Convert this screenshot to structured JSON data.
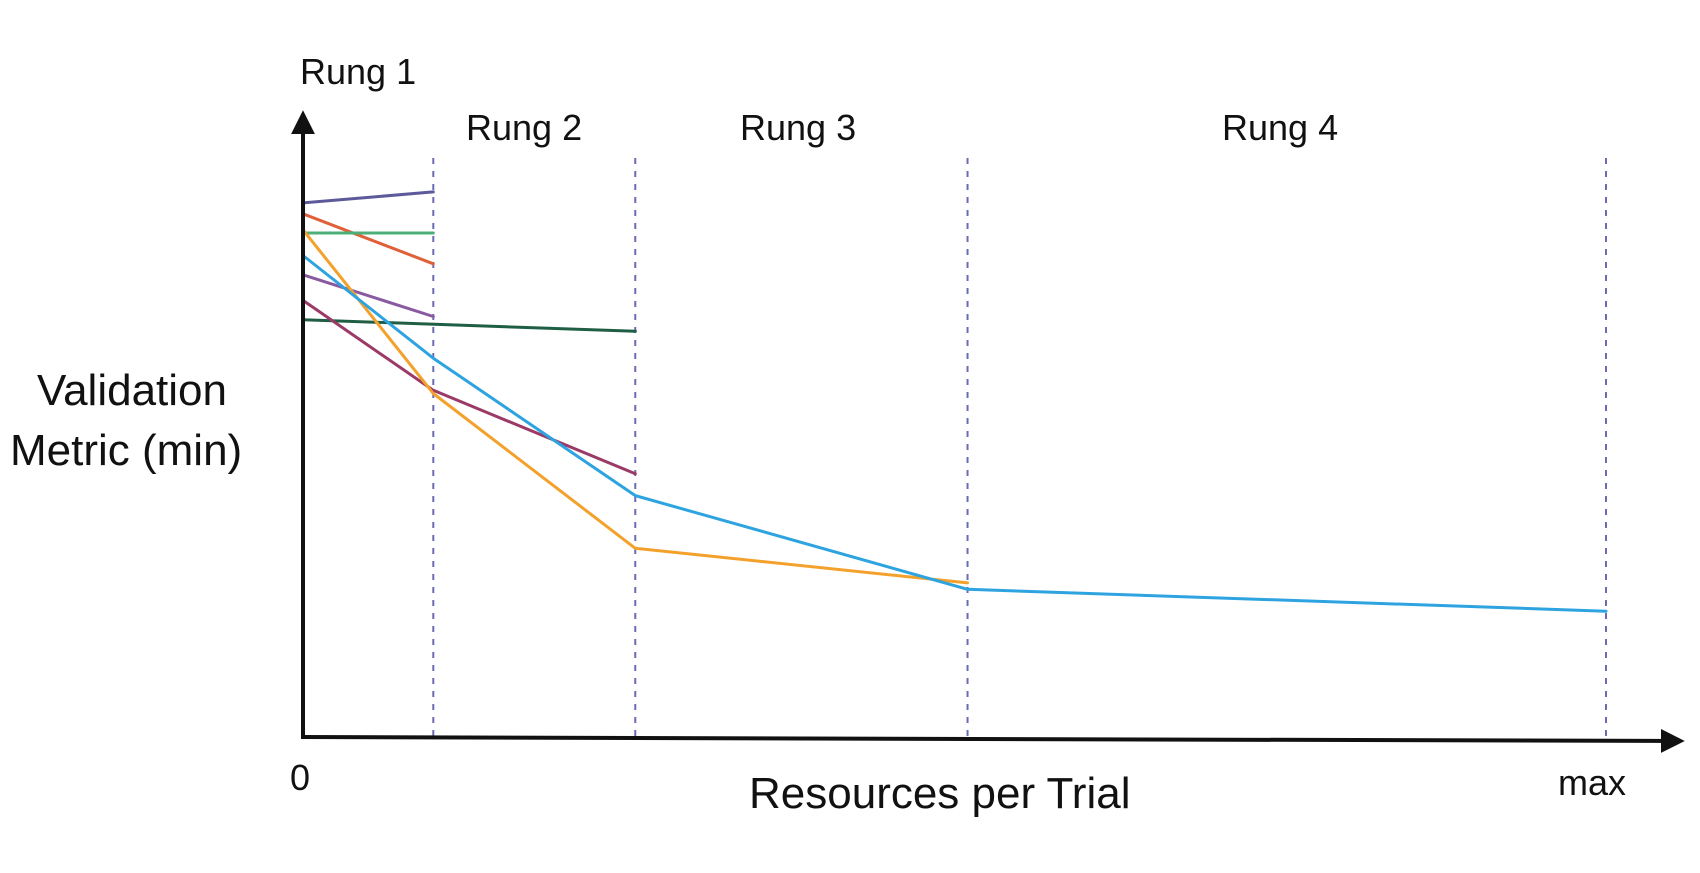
{
  "chart_data": {
    "type": "line",
    "ylabel_lines": [
      "Validation",
      "Metric (min)"
    ],
    "xlabel": "Resources per Trial",
    "x_ticks": [
      "0",
      "max"
    ],
    "rung_labels": [
      "Rung 1",
      "Rung 2",
      "Rung 3",
      "Rung 4"
    ],
    "rung_boundaries": [
      0.1,
      0.255,
      0.51,
      1.0
    ],
    "xlim": [
      0,
      1.0
    ],
    "ylim": [
      0,
      1.0
    ],
    "grid": false,
    "legend": "none",
    "series": [
      {
        "color": "#5c5a9a",
        "x": [
          0,
          0.1
        ],
        "y": [
          0.832,
          0.849
        ]
      },
      {
        "color": "#e0603a",
        "x": [
          0,
          0.1
        ],
        "y": [
          0.815,
          0.737
        ]
      },
      {
        "color": "#4caf7a",
        "x": [
          0,
          0.1
        ],
        "y": [
          0.785,
          0.785
        ]
      },
      {
        "color": "#8a5aa0",
        "x": [
          0,
          0.1
        ],
        "y": [
          0.72,
          0.655
        ]
      },
      {
        "color": "#1f5e44",
        "x": [
          0,
          0.255
        ],
        "y": [
          0.65,
          0.632
        ]
      },
      {
        "color": "#9b3a66",
        "x": [
          0,
          0.1,
          0.255
        ],
        "y": [
          0.68,
          0.54,
          0.41
        ]
      },
      {
        "color": "#f4a12c",
        "x": [
          0,
          0.1,
          0.255,
          0.51
        ],
        "y": [
          0.79,
          0.535,
          0.294,
          0.24
        ]
      },
      {
        "color": "#2da3e0",
        "x": [
          0,
          0.1,
          0.255,
          0.51,
          1.0
        ],
        "y": [
          0.75,
          0.59,
          0.376,
          0.23,
          0.196
        ]
      }
    ]
  }
}
